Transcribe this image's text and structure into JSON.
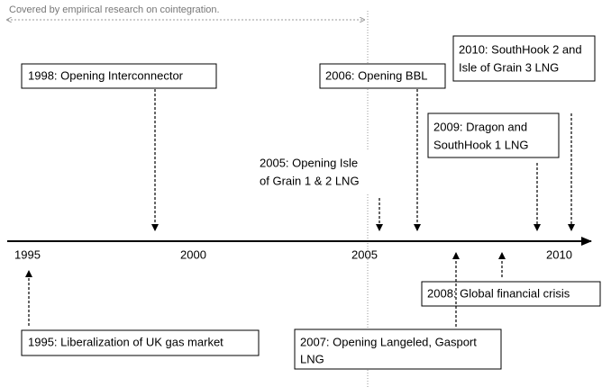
{
  "note": "Covered by empirical research on cointegration.",
  "axis": {
    "labels": [
      "1995",
      "2000",
      "2005",
      "2010"
    ]
  },
  "events": [
    {
      "lines": [
        "1998: Opening Interconnector"
      ]
    },
    {
      "lines": [
        "2006: Opening BBL"
      ]
    },
    {
      "lines": [
        "2010: SouthHook 2 and",
        "Isle of Grain 3 LNG"
      ]
    },
    {
      "lines": [
        "2009: Dragon and",
        "SouthHook 1 LNG"
      ]
    },
    {
      "lines": [
        "2005: Opening Isle",
        "of Grain 1 & 2 LNG"
      ]
    },
    {
      "lines": [
        "2008: Global financial crisis"
      ]
    },
    {
      "lines": [
        "1995: Liberalization of UK gas market"
      ]
    },
    {
      "lines": [
        "2007: Opening Langeled, Gasport",
        "LNG"
      ]
    }
  ]
}
